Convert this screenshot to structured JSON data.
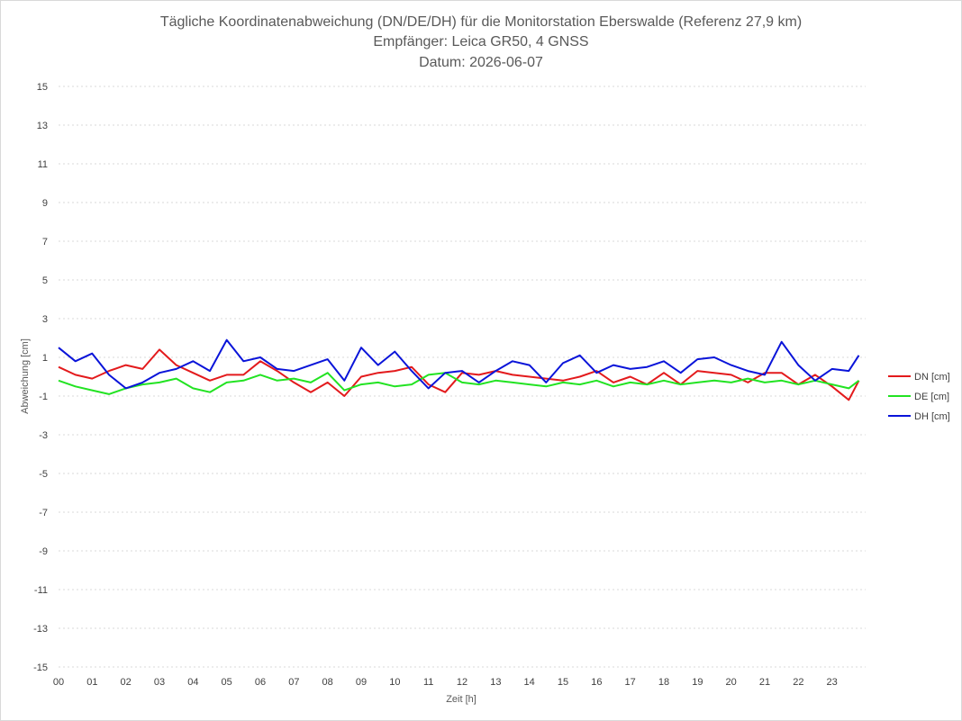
{
  "chart_data": {
    "type": "line",
    "title": [
      "Tägliche Koordinatenabweichung (DN/DE/DH) für die Monitorstation Eberswalde (Referenz 27,9 km)",
      "Empfänger: Leica GR50, 4 GNSS",
      "Datum: 2026-06-07"
    ],
    "xlabel": "Zeit [h]",
    "ylabel": "Abweichung [cm]",
    "xlim": [
      0,
      24
    ],
    "ylim": [
      -15,
      15
    ],
    "x_ticks": [
      "00",
      "01",
      "02",
      "03",
      "04",
      "05",
      "06",
      "07",
      "08",
      "09",
      "10",
      "11",
      "12",
      "13",
      "14",
      "15",
      "16",
      "17",
      "18",
      "19",
      "20",
      "21",
      "22",
      "23"
    ],
    "y_ticks": [
      15,
      13,
      11,
      9,
      7,
      5,
      3,
      1,
      -1,
      -3,
      -5,
      -7,
      -9,
      -11,
      -13,
      -15
    ],
    "grid": "horizontal dotted",
    "legend_position": "right",
    "x": [
      0,
      0.5,
      1,
      1.5,
      2,
      2.5,
      3,
      3.5,
      4,
      4.5,
      5,
      5.5,
      6,
      6.5,
      7,
      7.5,
      8,
      8.5,
      9,
      9.5,
      10,
      10.5,
      11,
      11.5,
      12,
      12.5,
      13,
      13.5,
      14,
      14.5,
      15,
      15.5,
      16,
      16.5,
      17,
      17.5,
      18,
      18.5,
      19,
      19.5,
      20,
      20.5,
      21,
      21.5,
      22,
      22.5,
      23,
      23.5,
      23.8
    ],
    "series": [
      {
        "name": "DN [cm]",
        "color": "#e31a1c",
        "values": [
          0.5,
          0.1,
          -0.1,
          0.3,
          0.6,
          0.4,
          1.4,
          0.6,
          0.2,
          -0.2,
          0.1,
          0.1,
          0.8,
          0.3,
          -0.3,
          -0.8,
          -0.3,
          -1.0,
          0.0,
          0.2,
          0.3,
          0.5,
          -0.4,
          -0.8,
          0.2,
          0.1,
          0.3,
          0.1,
          0.0,
          -0.1,
          -0.2,
          0.0,
          0.3,
          -0.3,
          0.0,
          -0.4,
          0.2,
          -0.4,
          0.3,
          0.2,
          0.1,
          -0.3,
          0.2,
          0.2,
          -0.4,
          0.1,
          -0.5,
          -1.2,
          -0.2
        ]
      },
      {
        "name": "DE [cm]",
        "color": "#22e322",
        "values": [
          -0.2,
          -0.5,
          -0.7,
          -0.9,
          -0.6,
          -0.4,
          -0.3,
          -0.1,
          -0.6,
          -0.8,
          -0.3,
          -0.2,
          0.1,
          -0.2,
          -0.1,
          -0.3,
          0.2,
          -0.7,
          -0.4,
          -0.3,
          -0.5,
          -0.4,
          0.1,
          0.2,
          -0.3,
          -0.4,
          -0.2,
          -0.3,
          -0.4,
          -0.5,
          -0.3,
          -0.4,
          -0.2,
          -0.5,
          -0.3,
          -0.4,
          -0.2,
          -0.4,
          -0.3,
          -0.2,
          -0.3,
          -0.1,
          -0.3,
          -0.2,
          -0.4,
          -0.2,
          -0.4,
          -0.6,
          -0.2
        ]
      },
      {
        "name": "DH [cm]",
        "color": "#0a14d9",
        "values": [
          1.5,
          0.8,
          1.2,
          0.1,
          -0.6,
          -0.3,
          0.2,
          0.4,
          0.8,
          0.3,
          1.9,
          0.8,
          1.0,
          0.4,
          0.3,
          0.6,
          0.9,
          -0.2,
          1.5,
          0.6,
          1.3,
          0.3,
          -0.6,
          0.2,
          0.3,
          -0.3,
          0.3,
          0.8,
          0.6,
          -0.3,
          0.7,
          1.1,
          0.2,
          0.6,
          0.4,
          0.5,
          0.8,
          0.2,
          0.9,
          1.0,
          0.6,
          0.3,
          0.1,
          1.8,
          0.6,
          -0.2,
          0.4,
          0.3,
          1.1
        ]
      }
    ]
  }
}
